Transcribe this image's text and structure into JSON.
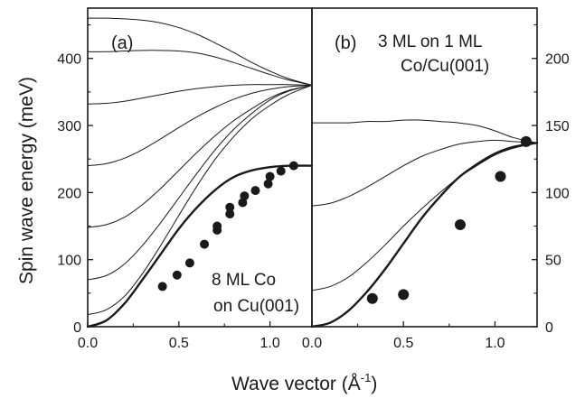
{
  "xlabel": "Wave vector (Å",
  "xlabel_sup": "-1",
  "xlabel_close": ")",
  "chart_data": [
    {
      "type": "line",
      "panel": "(a)",
      "annotation": [
        "8 ML Co",
        "on Cu(001)"
      ],
      "xlabel": "Wave vector (Å-1)",
      "ylabel": "Spin wave energy (meV)",
      "xlim": [
        0.0,
        1.23
      ],
      "ylim": [
        0,
        475
      ],
      "xticks": [
        0.0,
        0.5,
        1.0
      ],
      "yticks": [
        0,
        100,
        200,
        300,
        400
      ],
      "xtick_labels": [
        "0.0",
        "0.5",
        "1.0"
      ],
      "ytick_labels": [
        "0",
        "100",
        "200",
        "300",
        "400"
      ],
      "y_axis_side": "left",
      "series": [
        {
          "style": "thick",
          "x": [
            0.0,
            0.1,
            0.2,
            0.3,
            0.4,
            0.5,
            0.6,
            0.7,
            0.8,
            0.9,
            1.0,
            1.1,
            1.23
          ],
          "y": [
            0,
            9,
            34,
            70,
            108,
            146,
            178,
            204,
            223,
            233,
            238,
            240,
            240
          ]
        },
        {
          "style": "thin",
          "x": [
            0.0,
            0.1,
            0.2,
            0.3,
            0.4,
            0.5,
            0.6,
            0.7,
            0.8,
            0.9,
            1.0,
            1.1,
            1.23
          ],
          "y": [
            18,
            25,
            45,
            79,
            121,
            166,
            210,
            250,
            283,
            310,
            330,
            346,
            360
          ]
        },
        {
          "style": "thin",
          "x": [
            0.0,
            0.1,
            0.2,
            0.3,
            0.4,
            0.5,
            0.6,
            0.7,
            0.8,
            0.9,
            1.0,
            1.1,
            1.23
          ],
          "y": [
            70,
            76,
            93,
            121,
            155,
            192,
            229,
            264,
            294,
            318,
            338,
            351,
            360
          ]
        },
        {
          "style": "thin",
          "x": [
            0.0,
            0.1,
            0.2,
            0.3,
            0.4,
            0.5,
            0.6,
            0.7,
            0.8,
            0.9,
            1.0,
            1.1,
            1.23
          ],
          "y": [
            148,
            152,
            163,
            182,
            206,
            233,
            260,
            285,
            307,
            325,
            341,
            352,
            360
          ]
        },
        {
          "style": "thin",
          "x": [
            0.0,
            0.1,
            0.2,
            0.3,
            0.4,
            0.5,
            0.6,
            0.7,
            0.8,
            0.9,
            1.0,
            1.1,
            1.23
          ],
          "y": [
            240,
            243,
            251,
            264,
            280,
            297,
            313,
            327,
            339,
            348,
            354,
            358,
            360
          ]
        },
        {
          "style": "thin",
          "x": [
            0.0,
            0.1,
            0.2,
            0.3,
            0.4,
            0.5,
            0.6,
            0.7,
            0.8,
            0.9,
            1.0,
            1.1,
            1.23
          ],
          "y": [
            332,
            333,
            336,
            341,
            346,
            351,
            355,
            358,
            360,
            361,
            361,
            361,
            360
          ]
        },
        {
          "style": "thin",
          "x": [
            0.0,
            0.1,
            0.2,
            0.3,
            0.4,
            0.5,
            0.6,
            0.7,
            0.8,
            0.9,
            1.0,
            1.1,
            1.23
          ],
          "y": [
            410,
            410,
            411,
            412,
            412,
            411,
            408,
            402,
            394,
            385,
            376,
            368,
            360
          ]
        },
        {
          "style": "thin",
          "x": [
            0.0,
            0.1,
            0.2,
            0.3,
            0.4,
            0.5,
            0.6,
            0.7,
            0.8,
            0.9,
            1.0,
            1.1,
            1.23
          ],
          "y": [
            460,
            460,
            459,
            457,
            453,
            446,
            436,
            423,
            409,
            394,
            381,
            370,
            360
          ]
        }
      ],
      "points": {
        "x": [
          0.41,
          0.49,
          0.56,
          0.64,
          0.71,
          0.71,
          0.78,
          0.78,
          0.85,
          0.86,
          0.92,
          0.99,
          1.0,
          1.06,
          1.13
        ],
        "y": [
          60,
          77,
          95,
          123,
          144,
          150,
          168,
          178,
          185,
          195,
          203,
          213,
          224,
          232,
          240
        ]
      }
    },
    {
      "type": "line",
      "panel": "(b)",
      "annotation": [
        "3 ML on 1 ML",
        "Co/Cu(001)"
      ],
      "xlabel": "Wave vector (Å-1)",
      "xlim": [
        0.0,
        1.23
      ],
      "ylim": [
        0,
        237.5
      ],
      "xticks": [
        0.0,
        0.5,
        1.0
      ],
      "yticks": [
        0,
        50,
        100,
        150,
        200
      ],
      "xtick_labels": [
        "0.0",
        "0.5",
        "1.0"
      ],
      "ytick_labels": [
        "0",
        "50",
        "100",
        "150",
        "200"
      ],
      "y_axis_side": "right",
      "series": [
        {
          "style": "thick",
          "x": [
            0.0,
            0.1,
            0.2,
            0.3,
            0.4,
            0.5,
            0.6,
            0.7,
            0.8,
            0.9,
            1.0,
            1.1,
            1.23
          ],
          "y": [
            0,
            3,
            12,
            26,
            43,
            62,
            81,
            97,
            111,
            121,
            129,
            134,
            137
          ]
        },
        {
          "style": "thin",
          "x": [
            0.0,
            0.1,
            0.2,
            0.3,
            0.4,
            0.5,
            0.6,
            0.7,
            0.8,
            0.9,
            1.0,
            1.1,
            1.23
          ],
          "y": [
            27,
            30,
            37,
            48,
            61,
            75,
            88,
            100,
            111,
            120,
            128,
            133,
            137
          ]
        },
        {
          "style": "thin",
          "x": [
            0.0,
            0.1,
            0.2,
            0.3,
            0.4,
            0.5,
            0.6,
            0.7,
            0.8,
            0.9,
            1.0,
            1.1,
            1.23
          ],
          "y": [
            90,
            92,
            97,
            104,
            112,
            120,
            127,
            132,
            136,
            138,
            139,
            138,
            137
          ]
        },
        {
          "style": "thin",
          "x": [
            0.0,
            0.1,
            0.2,
            0.3,
            0.4,
            0.5,
            0.6,
            0.7,
            0.8,
            0.9,
            1.0,
            1.1,
            1.23
          ],
          "y": [
            152,
            152,
            152,
            153,
            153,
            154,
            154,
            153,
            152,
            150,
            146,
            141,
            137
          ]
        }
      ],
      "points": {
        "x": [
          0.33,
          0.5,
          0.81,
          1.03,
          1.17
        ],
        "y": [
          21,
          24,
          76,
          112,
          138
        ]
      }
    }
  ]
}
